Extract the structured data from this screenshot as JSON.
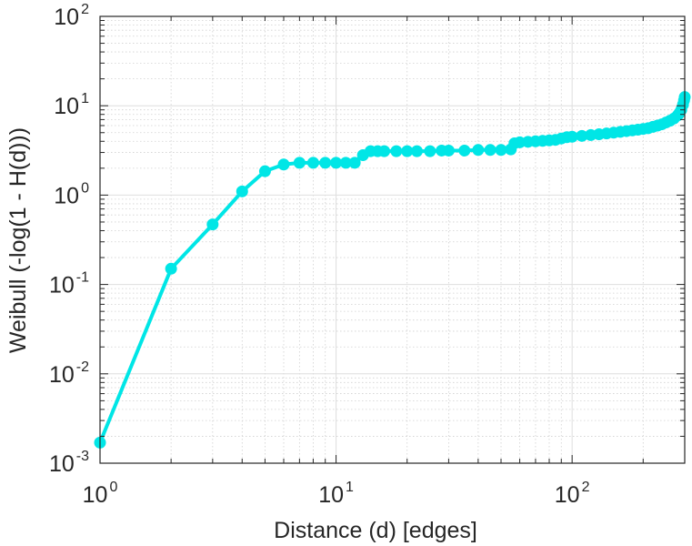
{
  "chart_data": {
    "type": "line",
    "xlabel": "Distance (d) [edges]",
    "ylabel": "Weibull (-log(1 - H(d)))",
    "x_scale": "log",
    "y_scale": "log",
    "xlim": [
      1,
      300
    ],
    "ylim": [
      0.001,
      100
    ],
    "grid": "on",
    "box": "on",
    "x_ticks": [
      {
        "base": "10",
        "exp": "0",
        "value": 1
      },
      {
        "base": "10",
        "exp": "1",
        "value": 10
      },
      {
        "base": "10",
        "exp": "2",
        "value": 100
      }
    ],
    "y_ticks": [
      {
        "base": "10",
        "exp": "-3",
        "value": 0.001
      },
      {
        "base": "10",
        "exp": "-2",
        "value": 0.01
      },
      {
        "base": "10",
        "exp": "-1",
        "value": 0.1
      },
      {
        "base": "10",
        "exp": "0",
        "value": 1
      },
      {
        "base": "10",
        "exp": "1",
        "value": 10
      },
      {
        "base": "10",
        "exp": "2",
        "value": 100
      }
    ],
    "series": [
      {
        "color": "#00e6e6",
        "marker": "circle",
        "points": [
          [
            1,
            0.0017
          ],
          [
            2,
            0.15
          ],
          [
            3,
            0.47
          ],
          [
            4,
            1.1
          ],
          [
            5,
            1.85
          ],
          [
            6,
            2.2
          ],
          [
            7,
            2.3
          ],
          [
            8,
            2.3
          ],
          [
            9,
            2.3
          ],
          [
            10,
            2.3
          ],
          [
            11,
            2.3
          ],
          [
            12,
            2.3
          ],
          [
            13,
            2.8
          ],
          [
            14,
            3.1
          ],
          [
            15,
            3.1
          ],
          [
            16,
            3.1
          ],
          [
            18,
            3.1
          ],
          [
            20,
            3.1
          ],
          [
            22,
            3.1
          ],
          [
            25,
            3.1
          ],
          [
            28,
            3.15
          ],
          [
            30,
            3.15
          ],
          [
            35,
            3.15
          ],
          [
            40,
            3.2
          ],
          [
            45,
            3.2
          ],
          [
            50,
            3.2
          ],
          [
            55,
            3.25
          ],
          [
            57,
            3.8
          ],
          [
            60,
            3.9
          ],
          [
            65,
            3.95
          ],
          [
            70,
            4.0
          ],
          [
            75,
            4.05
          ],
          [
            80,
            4.1
          ],
          [
            85,
            4.15
          ],
          [
            90,
            4.3
          ],
          [
            95,
            4.45
          ],
          [
            100,
            4.5
          ],
          [
            110,
            4.6
          ],
          [
            120,
            4.7
          ],
          [
            130,
            4.8
          ],
          [
            140,
            4.9
          ],
          [
            150,
            5.0
          ],
          [
            160,
            5.1
          ],
          [
            170,
            5.2
          ],
          [
            180,
            5.3
          ],
          [
            190,
            5.4
          ],
          [
            200,
            5.5
          ],
          [
            210,
            5.6
          ],
          [
            220,
            5.8
          ],
          [
            230,
            6.0
          ],
          [
            240,
            6.2
          ],
          [
            250,
            6.5
          ],
          [
            260,
            6.8
          ],
          [
            270,
            7.2
          ],
          [
            280,
            7.8
          ],
          [
            285,
            8.3
          ],
          [
            290,
            9.0
          ],
          [
            295,
            10.3
          ],
          [
            298,
            11.5
          ],
          [
            300,
            12.5
          ]
        ]
      }
    ]
  }
}
